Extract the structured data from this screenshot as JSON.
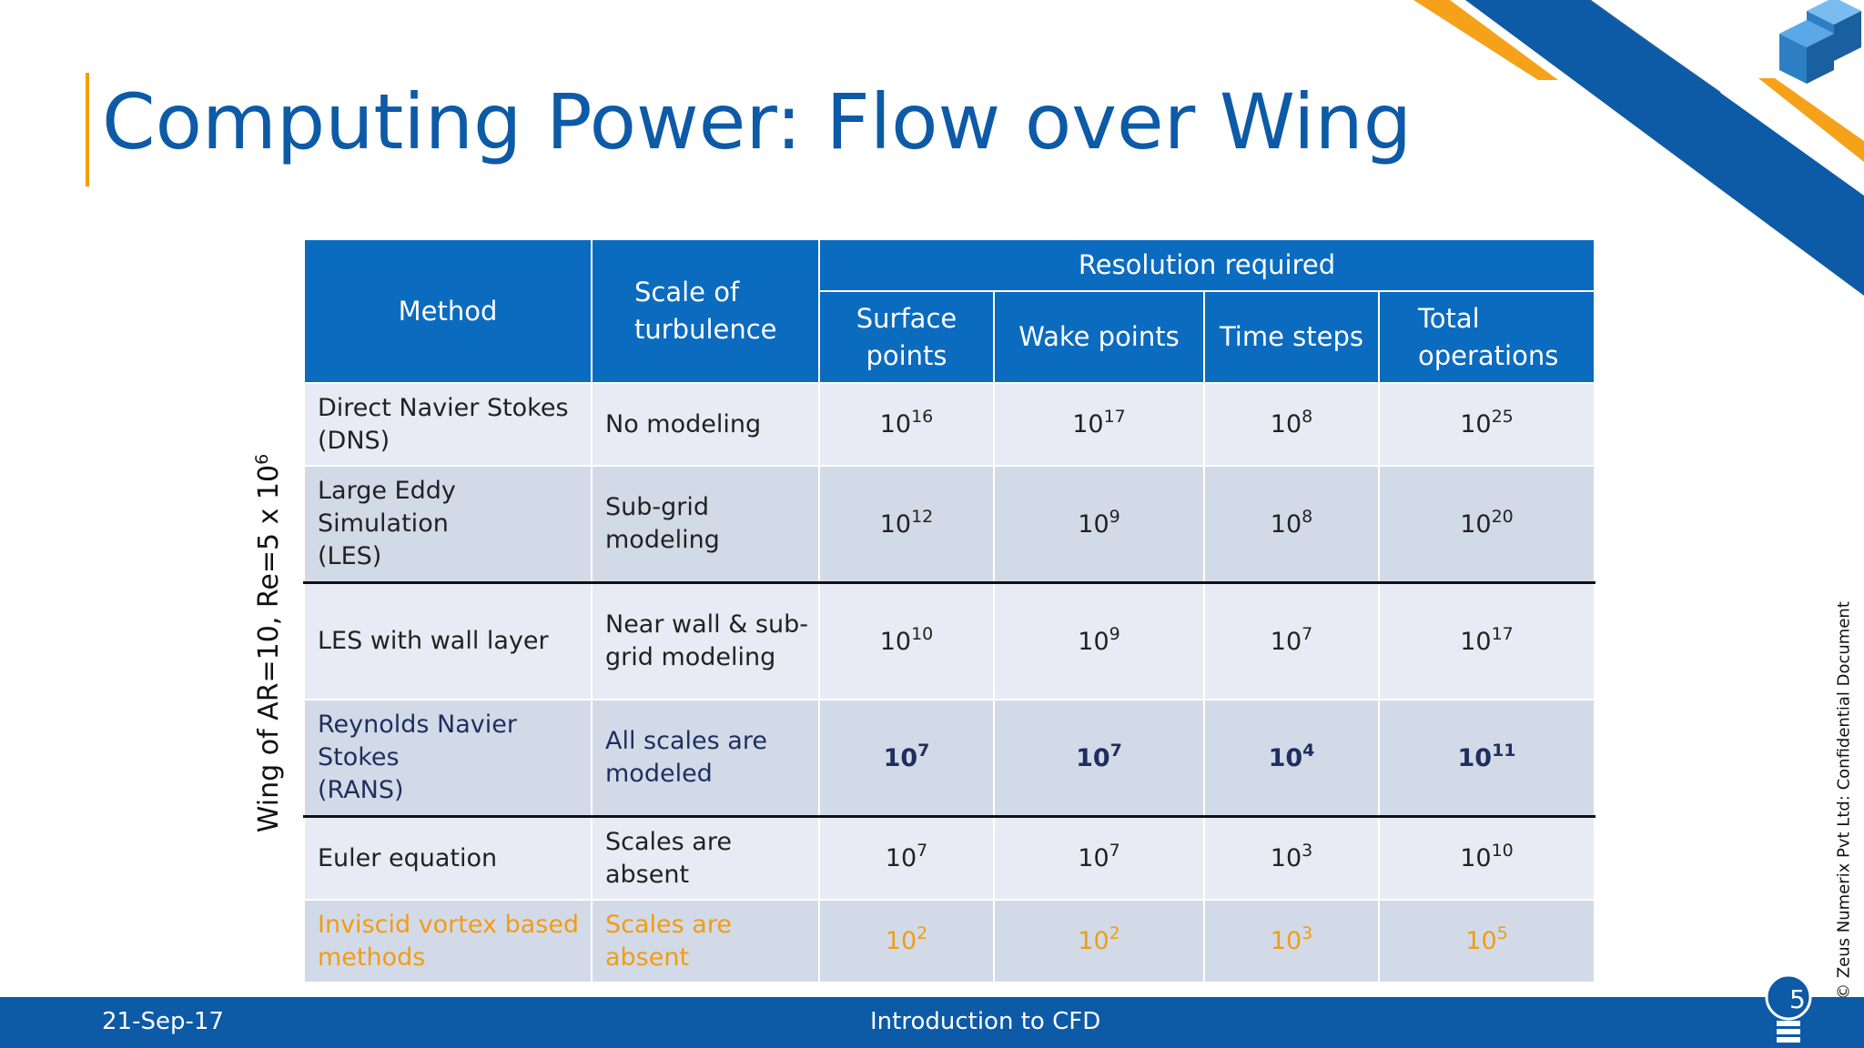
{
  "title": "Computing Power: Flow over Wing",
  "side_label": "Wing of AR=10, Re=5 x 10",
  "side_label_exp": "6",
  "copyright": "© Zeus Numerix Pvt Ltd: Confidential Document",
  "colors": {
    "primary_blue": "#0d5aa7",
    "header_blue": "#0b6bbf",
    "accent_orange": "#f39c12",
    "row_light": "#e8ebf3",
    "row_dark": "#d2dae8"
  },
  "icons": [
    "cube-logo-icon",
    "lightbulb-icon"
  ],
  "table": {
    "headers": {
      "method": "Method",
      "scale_line1": "Scale of",
      "scale_line2": "turbulence",
      "resolution": "Resolution required",
      "surface_line1": "Surface",
      "surface_line2": "points",
      "wake": "Wake points",
      "time": "Time steps",
      "total_line1": "Total",
      "total_line2": "operations"
    },
    "rows": [
      {
        "method_l1": "Direct Navier Stokes",
        "method_l2": "(DNS)",
        "scale_l1": "No modeling",
        "scale_l2": "",
        "surface_exp": "16",
        "wake_exp": "17",
        "time_exp": "8",
        "total_exp": "25"
      },
      {
        "method_l1": "Large Eddy Simulation",
        "method_l2": "(LES)",
        "scale_l1": "Sub-grid modeling",
        "scale_l2": "",
        "surface_exp": "12",
        "wake_exp": "9",
        "time_exp": "8",
        "total_exp": "20"
      },
      {
        "method_l1": "LES with wall layer",
        "method_l2": "",
        "scale_l1": "Near wall & sub-",
        "scale_l2": "grid modeling",
        "surface_exp": "10",
        "wake_exp": "9",
        "time_exp": "7",
        "total_exp": "17"
      },
      {
        "method_l1": "Reynolds Navier Stokes",
        "method_l2": "(RANS)",
        "scale_l1": "All scales are",
        "scale_l2": "modeled",
        "surface_exp": "7",
        "wake_exp": "7",
        "time_exp": "4",
        "total_exp": "11"
      },
      {
        "method_l1": "Euler equation",
        "method_l2": "",
        "scale_l1": "Scales are absent",
        "scale_l2": "",
        "surface_exp": "7",
        "wake_exp": "7",
        "time_exp": "3",
        "total_exp": "10"
      },
      {
        "method_l1": "Inviscid vortex based",
        "method_l2": "methods",
        "scale_l1": "Scales are absent",
        "scale_l2": "",
        "surface_exp": "2",
        "wake_exp": "2",
        "time_exp": "3",
        "total_exp": "5"
      }
    ],
    "base": "10"
  },
  "footer": {
    "date": "21-Sep-17",
    "center": "Introduction to CFD",
    "page": "5"
  }
}
